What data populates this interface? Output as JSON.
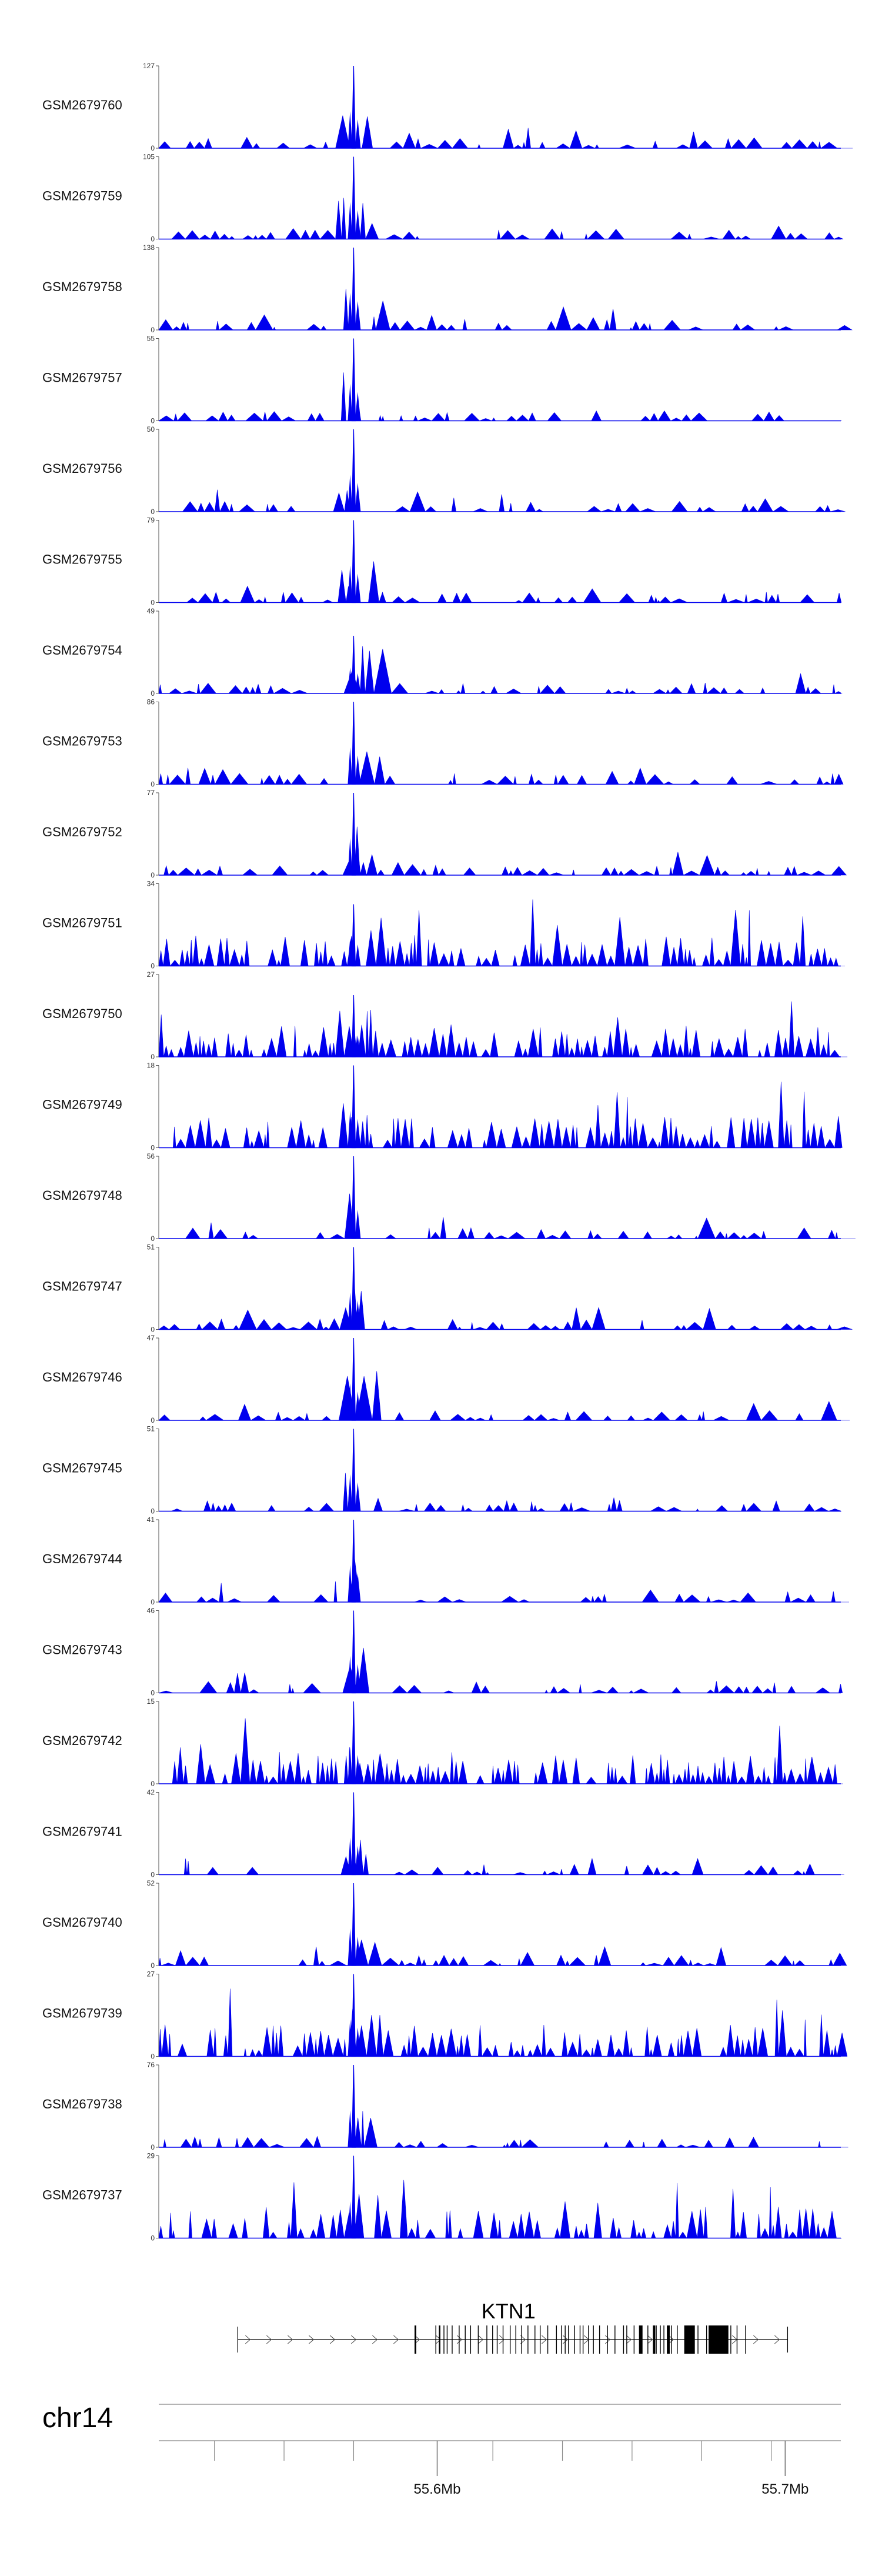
{
  "chart_data": {
    "type": "area",
    "chromosome": "chr14",
    "gene": {
      "name": "KTN1",
      "strand": "+",
      "start_mb": 55.5427,
      "end_mb": 55.7007
    },
    "region_mb": [
      55.52,
      55.716
    ],
    "genome_axis": {
      "major_ticks": [
        {
          "mb": 55.6,
          "label": "55.6Mb"
        },
        {
          "mb": 55.7,
          "label": "55.7Mb"
        }
      ],
      "minor_ticks_mb": [
        55.536,
        55.556,
        55.576,
        55.616,
        55.636,
        55.656,
        55.676,
        55.696
      ]
    },
    "peak_position_mb": 55.576,
    "tracks": [
      {
        "name": "GSM2679760",
        "max": "127",
        "min": "0",
        "peak_frac": 1.0
      },
      {
        "name": "GSM2679759",
        "max": "105",
        "min": "0",
        "peak_frac": 1.0
      },
      {
        "name": "GSM2679758",
        "max": "138",
        "min": "0",
        "peak_frac": 1.0
      },
      {
        "name": "GSM2679757",
        "max": "55",
        "min": "0",
        "peak_frac": 1.0
      },
      {
        "name": "GSM2679756",
        "max": "50",
        "min": "0",
        "peak_frac": 1.0
      },
      {
        "name": "GSM2679755",
        "max": "79",
        "min": "0",
        "peak_frac": 1.0
      },
      {
        "name": "GSM2679754",
        "max": "49",
        "min": "0",
        "peak_frac": 0.7
      },
      {
        "name": "GSM2679753",
        "max": "86",
        "min": "0",
        "peak_frac": 1.0
      },
      {
        "name": "GSM2679752",
        "max": "77",
        "min": "0",
        "peak_frac": 1.0
      },
      {
        "name": "GSM2679751",
        "max": "34",
        "min": "0",
        "peak_frac": 0.75
      },
      {
        "name": "GSM2679750",
        "max": "27",
        "min": "0",
        "peak_frac": 0.75
      },
      {
        "name": "GSM2679749",
        "max": "18",
        "min": "0",
        "peak_frac": 1.0
      },
      {
        "name": "GSM2679748",
        "max": "56",
        "min": "0",
        "peak_frac": 1.0
      },
      {
        "name": "GSM2679747",
        "max": "51",
        "min": "0",
        "peak_frac": 1.0
      },
      {
        "name": "GSM2679746",
        "max": "47",
        "min": "0",
        "peak_frac": 1.0
      },
      {
        "name": "GSM2679745",
        "max": "51",
        "min": "0",
        "peak_frac": 1.0
      },
      {
        "name": "GSM2679744",
        "max": "41",
        "min": "0",
        "peak_frac": 1.0
      },
      {
        "name": "GSM2679743",
        "max": "46",
        "min": "0",
        "peak_frac": 1.0
      },
      {
        "name": "GSM2679742",
        "max": "15",
        "min": "0",
        "peak_frac": 1.0
      },
      {
        "name": "GSM2679741",
        "max": "42",
        "min": "0",
        "peak_frac": 1.0
      },
      {
        "name": "GSM2679740",
        "max": "52",
        "min": "0",
        "peak_frac": 1.0
      },
      {
        "name": "GSM2679739",
        "max": "27",
        "min": "0",
        "peak_frac": 1.0
      },
      {
        "name": "GSM2679738",
        "max": "76",
        "min": "0",
        "peak_frac": 1.0
      },
      {
        "name": "GSM2679737",
        "max": "29",
        "min": "0",
        "peak_frac": 1.0
      }
    ],
    "colors": {
      "coverage": "#0000ee",
      "axis": "#555555",
      "gene": "#000000"
    }
  }
}
